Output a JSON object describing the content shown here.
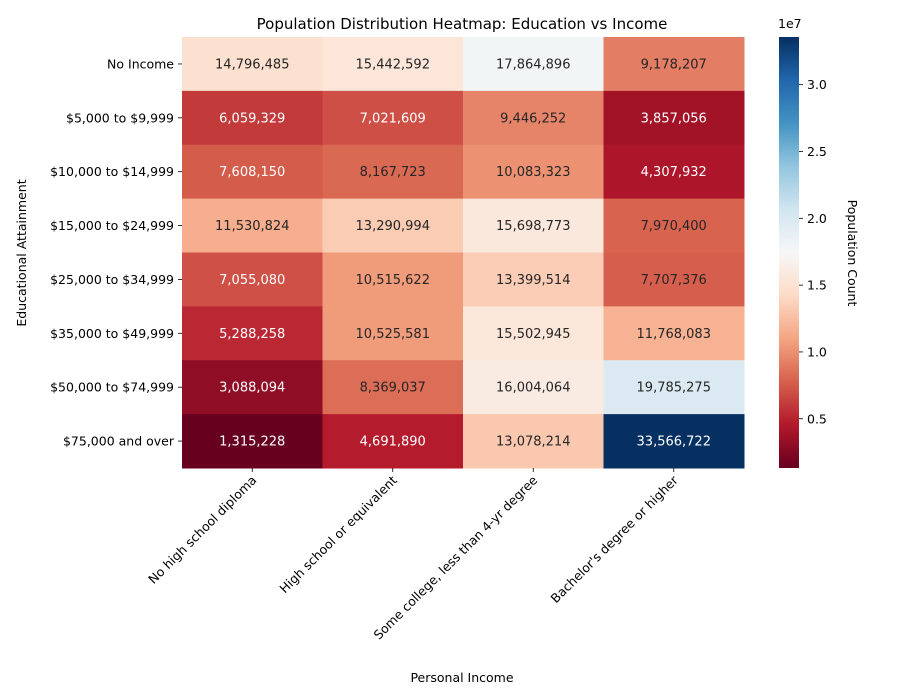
{
  "chart_data": {
    "type": "heatmap",
    "title": "Population Distribution Heatmap: Education vs Income",
    "xlabel": "Personal Income",
    "ylabel": "Educational Attainment",
    "columns": [
      "No high school diploma",
      "High school or equivalent",
      "Some college, less than 4-yr degree",
      "Bachelor's degree or higher"
    ],
    "rows": [
      "No Income",
      "$5,000 to $9,999",
      "$10,000 to $14,999",
      "$15,000 to $24,999",
      "$25,000 to $34,999",
      "$35,000 to $49,999",
      "$50,000 to $74,999",
      "$75,000 and over"
    ],
    "values": [
      [
        14796485,
        15442592,
        17864896,
        9178207
      ],
      [
        6059329,
        7021609,
        9446252,
        3857056
      ],
      [
        7608150,
        8167723,
        10083323,
        4307932
      ],
      [
        11530824,
        13290994,
        15698773,
        7970400
      ],
      [
        7055080,
        10515622,
        13399514,
        7707376
      ],
      [
        5288258,
        10525581,
        15502945,
        11768083
      ],
      [
        3088094,
        8369037,
        16004064,
        19785275
      ],
      [
        1315228,
        4691890,
        13078214,
        33566722
      ]
    ],
    "cell_labels": [
      [
        "14,796,485",
        "15,442,592",
        "17,864,896",
        "9,178,207"
      ],
      [
        "6,059,329",
        "7,021,609",
        "9,446,252",
        "3,857,056"
      ],
      [
        "7,608,150",
        "8,167,723",
        "10,083,323",
        "4,307,932"
      ],
      [
        "11,530,824",
        "13,290,994",
        "15,698,773",
        "7,970,400"
      ],
      [
        "7,055,080",
        "10,515,622",
        "13,399,514",
        "7,707,376"
      ],
      [
        "5,288,258",
        "10,525,581",
        "15,502,945",
        "11,768,083"
      ],
      [
        "3,088,094",
        "8,369,037",
        "16,004,064",
        "19,785,275"
      ],
      [
        "1,315,228",
        "4,691,890",
        "13,078,214",
        "33,566,722"
      ]
    ],
    "colormap": "RdBu",
    "colorbar": {
      "label": "Population Count",
      "multiplier": "1e7",
      "ticks": [
        0.5,
        1.0,
        1.5,
        2.0,
        2.5,
        3.0
      ],
      "tick_labels": [
        "0.5",
        "1.0",
        "1.5",
        "2.0",
        "2.5",
        "3.0"
      ],
      "range": [
        0.1315228,
        3.3566722
      ]
    }
  }
}
